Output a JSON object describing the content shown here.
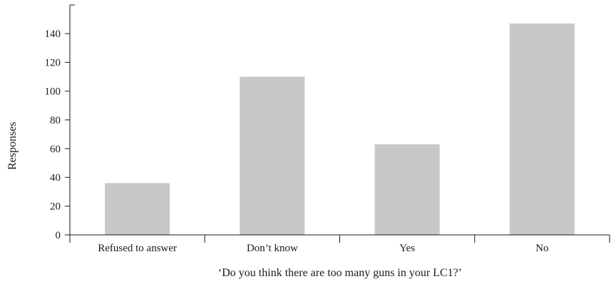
{
  "chart_data": {
    "type": "bar",
    "categories": [
      "Refused to answer",
      "Don’t know",
      "Yes",
      "No"
    ],
    "values": [
      36,
      110,
      63,
      147
    ],
    "xlabel": "‘Do you think there are too many guns in your LC1?’",
    "ylabel": "Responses",
    "ylim": [
      0,
      160
    ],
    "yticks": [
      0,
      20,
      40,
      60,
      80,
      100,
      120,
      140
    ],
    "grid": false,
    "bar_color": "#c8c8c8"
  }
}
